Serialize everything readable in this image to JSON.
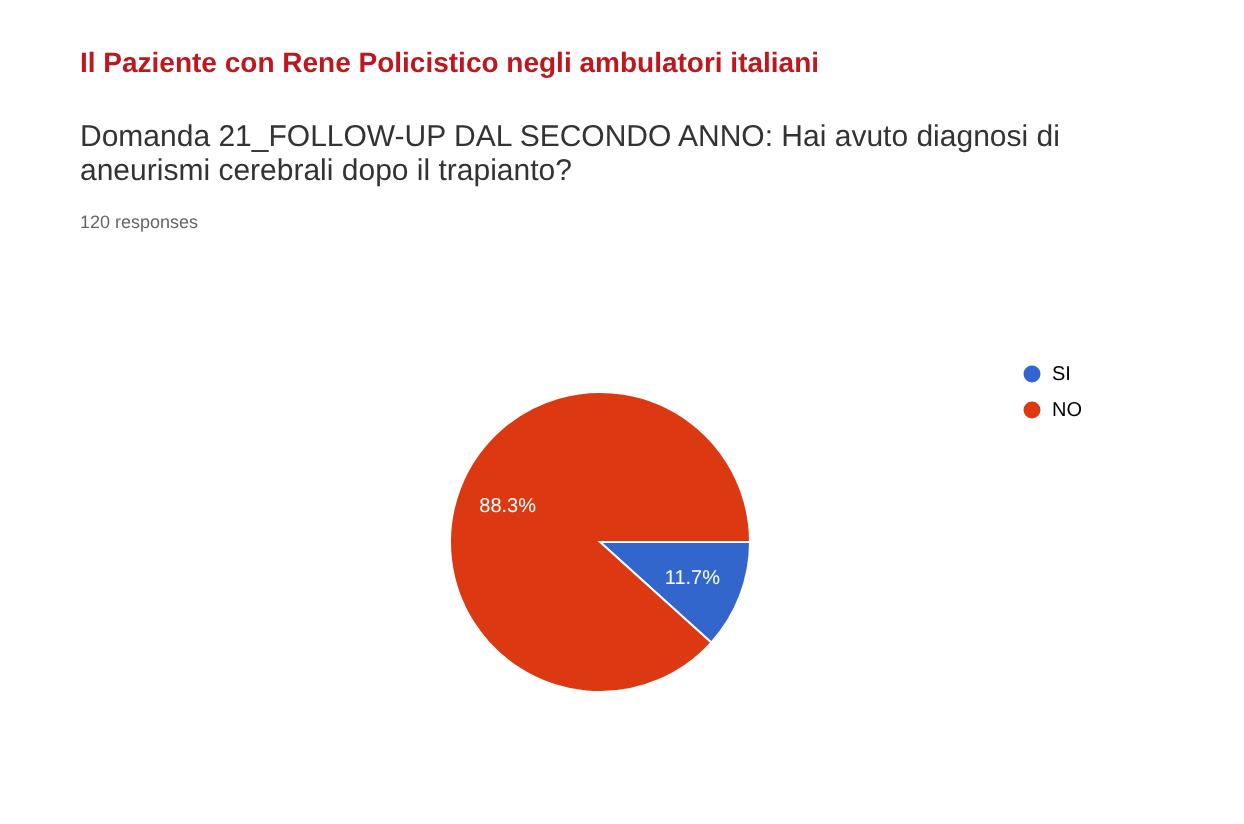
{
  "chart_data": {
    "type": "pie",
    "title": "Il Paziente con Rene Policistico negli ambulatori italiani",
    "subtitle": "Domanda 21_FOLLOW-UP DAL SECONDO ANNO: Hai avuto diagnosi di aneurismi cerebrali dopo il trapianto?",
    "annotations": [
      "120 responses"
    ],
    "categories": [
      "SI",
      "NO"
    ],
    "values": [
      11.7,
      88.3
    ],
    "colors": [
      "#3366cc",
      "#dc3912"
    ],
    "value_labels": [
      "11.7%",
      "88.3%"
    ],
    "legend": "right"
  }
}
